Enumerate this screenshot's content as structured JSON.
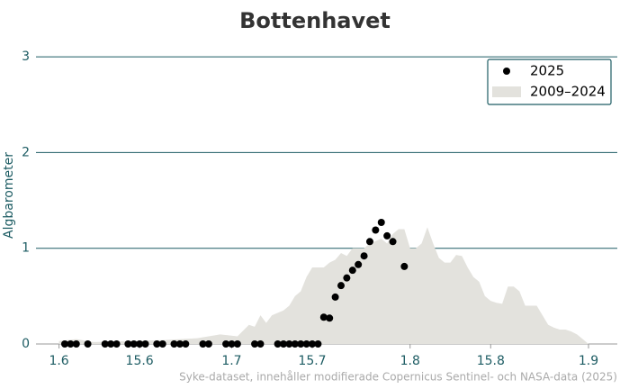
{
  "chart_data": {
    "type": "scatter",
    "title": "Bottenhavet",
    "ylabel": "Algbarometer",
    "source": "Syke-dataset, innehåller modifierade Copernicus Sentinel- och NASA-data (2025)",
    "xlim": [
      -4,
      97
    ],
    "ylim": [
      0,
      3.1
    ],
    "xticks": [
      {
        "value": 0,
        "label": "1.6"
      },
      {
        "value": 14,
        "label": "15.6"
      },
      {
        "value": 30,
        "label": "1.7"
      },
      {
        "value": 44,
        "label": "15.7"
      },
      {
        "value": 61,
        "label": "1.8"
      },
      {
        "value": 75,
        "label": "15.8"
      },
      {
        "value": 92,
        "label": "1.9"
      }
    ],
    "yticks": [
      0,
      1,
      2,
      3
    ],
    "grid": true,
    "legend": "upper right",
    "series": [
      {
        "name": "2025",
        "type": "scatter",
        "color": "#000000",
        "x": [
          1,
          2,
          3,
          5,
          8,
          9,
          10,
          12,
          13,
          14,
          15,
          17,
          18,
          20,
          21,
          22,
          25,
          26,
          29,
          30,
          31,
          34,
          35,
          38,
          39,
          40,
          41,
          42,
          43,
          44,
          45,
          46,
          47,
          48,
          49,
          50,
          51,
          52,
          53,
          54,
          55,
          56,
          57,
          58,
          60
        ],
        "values": [
          0,
          0,
          0,
          0,
          0,
          0,
          0,
          0,
          0,
          0,
          0,
          0,
          0,
          0,
          0,
          0,
          0,
          0,
          0,
          0,
          0,
          0,
          0,
          0,
          0,
          0,
          0,
          0,
          0,
          0,
          0,
          0.28,
          0.27,
          0.49,
          0.61,
          0.69,
          0.77,
          0.83,
          0.92,
          1.07,
          1.19,
          1.27,
          1.13,
          1.07,
          0.81
        ]
      },
      {
        "name": "2009–2024",
        "type": "area",
        "color": "#e3e2dd",
        "x": [
          0,
          3,
          6,
          12,
          18,
          24,
          28,
          31,
          33,
          34,
          35,
          36,
          37,
          39,
          40,
          41,
          42,
          43,
          44,
          46,
          47,
          48,
          49,
          50,
          51,
          53,
          54,
          56,
          57,
          58,
          59,
          60,
          61,
          62,
          63,
          64,
          65,
          66,
          67,
          68,
          69,
          70,
          71,
          72,
          73,
          74,
          75,
          76,
          77,
          78,
          79,
          80,
          81,
          82,
          83,
          84,
          85,
          86,
          87,
          88,
          89,
          90,
          91,
          92
        ],
        "values": [
          0.03,
          0.05,
          0.02,
          0.03,
          0.04,
          0.06,
          0.1,
          0.08,
          0.2,
          0.18,
          0.3,
          0.22,
          0.3,
          0.35,
          0.4,
          0.5,
          0.55,
          0.7,
          0.8,
          0.8,
          0.85,
          0.88,
          0.95,
          0.92,
          1.0,
          1.0,
          1.05,
          1.1,
          1.05,
          1.15,
          1.2,
          1.2,
          1.0,
          1.0,
          1.05,
          1.22,
          1.05,
          0.9,
          0.85,
          0.85,
          0.93,
          0.92,
          0.8,
          0.7,
          0.65,
          0.5,
          0.45,
          0.43,
          0.42,
          0.6,
          0.6,
          0.55,
          0.4,
          0.4,
          0.4,
          0.3,
          0.2,
          0.17,
          0.15,
          0.15,
          0.13,
          0.1,
          0.05,
          0
        ]
      }
    ]
  }
}
